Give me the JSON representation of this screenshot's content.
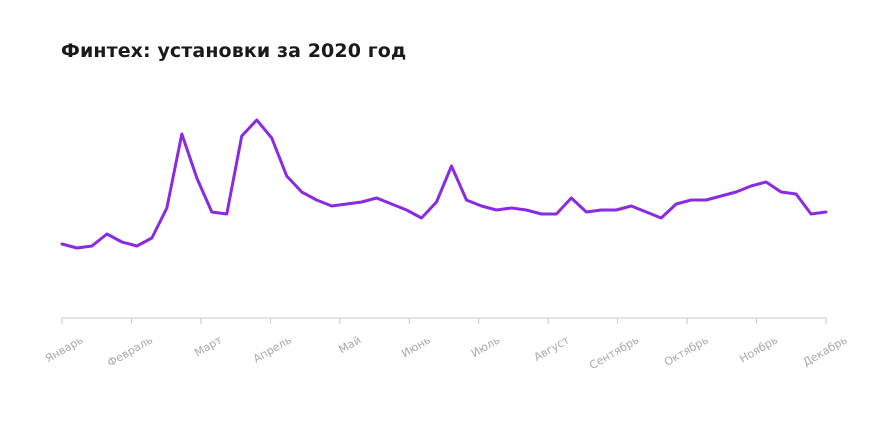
{
  "chart_data": {
    "type": "line",
    "title": "Финтех: установки за 2020 год",
    "xlabel": "",
    "ylabel": "",
    "grid": false,
    "legend": "none",
    "line_color": "#8A2BE2",
    "axis_color": "#c8c8c8",
    "label_color": "#a9a9a9",
    "ylim": [
      0,
      100
    ],
    "x_ticks": [
      "Январь",
      "Февраль",
      "Март",
      "Апрель",
      "Май",
      "Июнь",
      "Июль",
      "Август",
      "Сентябрь",
      "Октябрь",
      "Ноябрь",
      "Декабрь"
    ],
    "series": [
      {
        "values": [
          37,
          35,
          36,
          42,
          38,
          36,
          40,
          55,
          92,
          70,
          53,
          52,
          91,
          99,
          90,
          71,
          63,
          59,
          56,
          57,
          58,
          60,
          57,
          54,
          50,
          58,
          76,
          59,
          56,
          54,
          55,
          54,
          52,
          52,
          60,
          53,
          54,
          54,
          56,
          53,
          50,
          57,
          59,
          59,
          61,
          63,
          66,
          68,
          63,
          62,
          52,
          53
        ]
      }
    ]
  }
}
